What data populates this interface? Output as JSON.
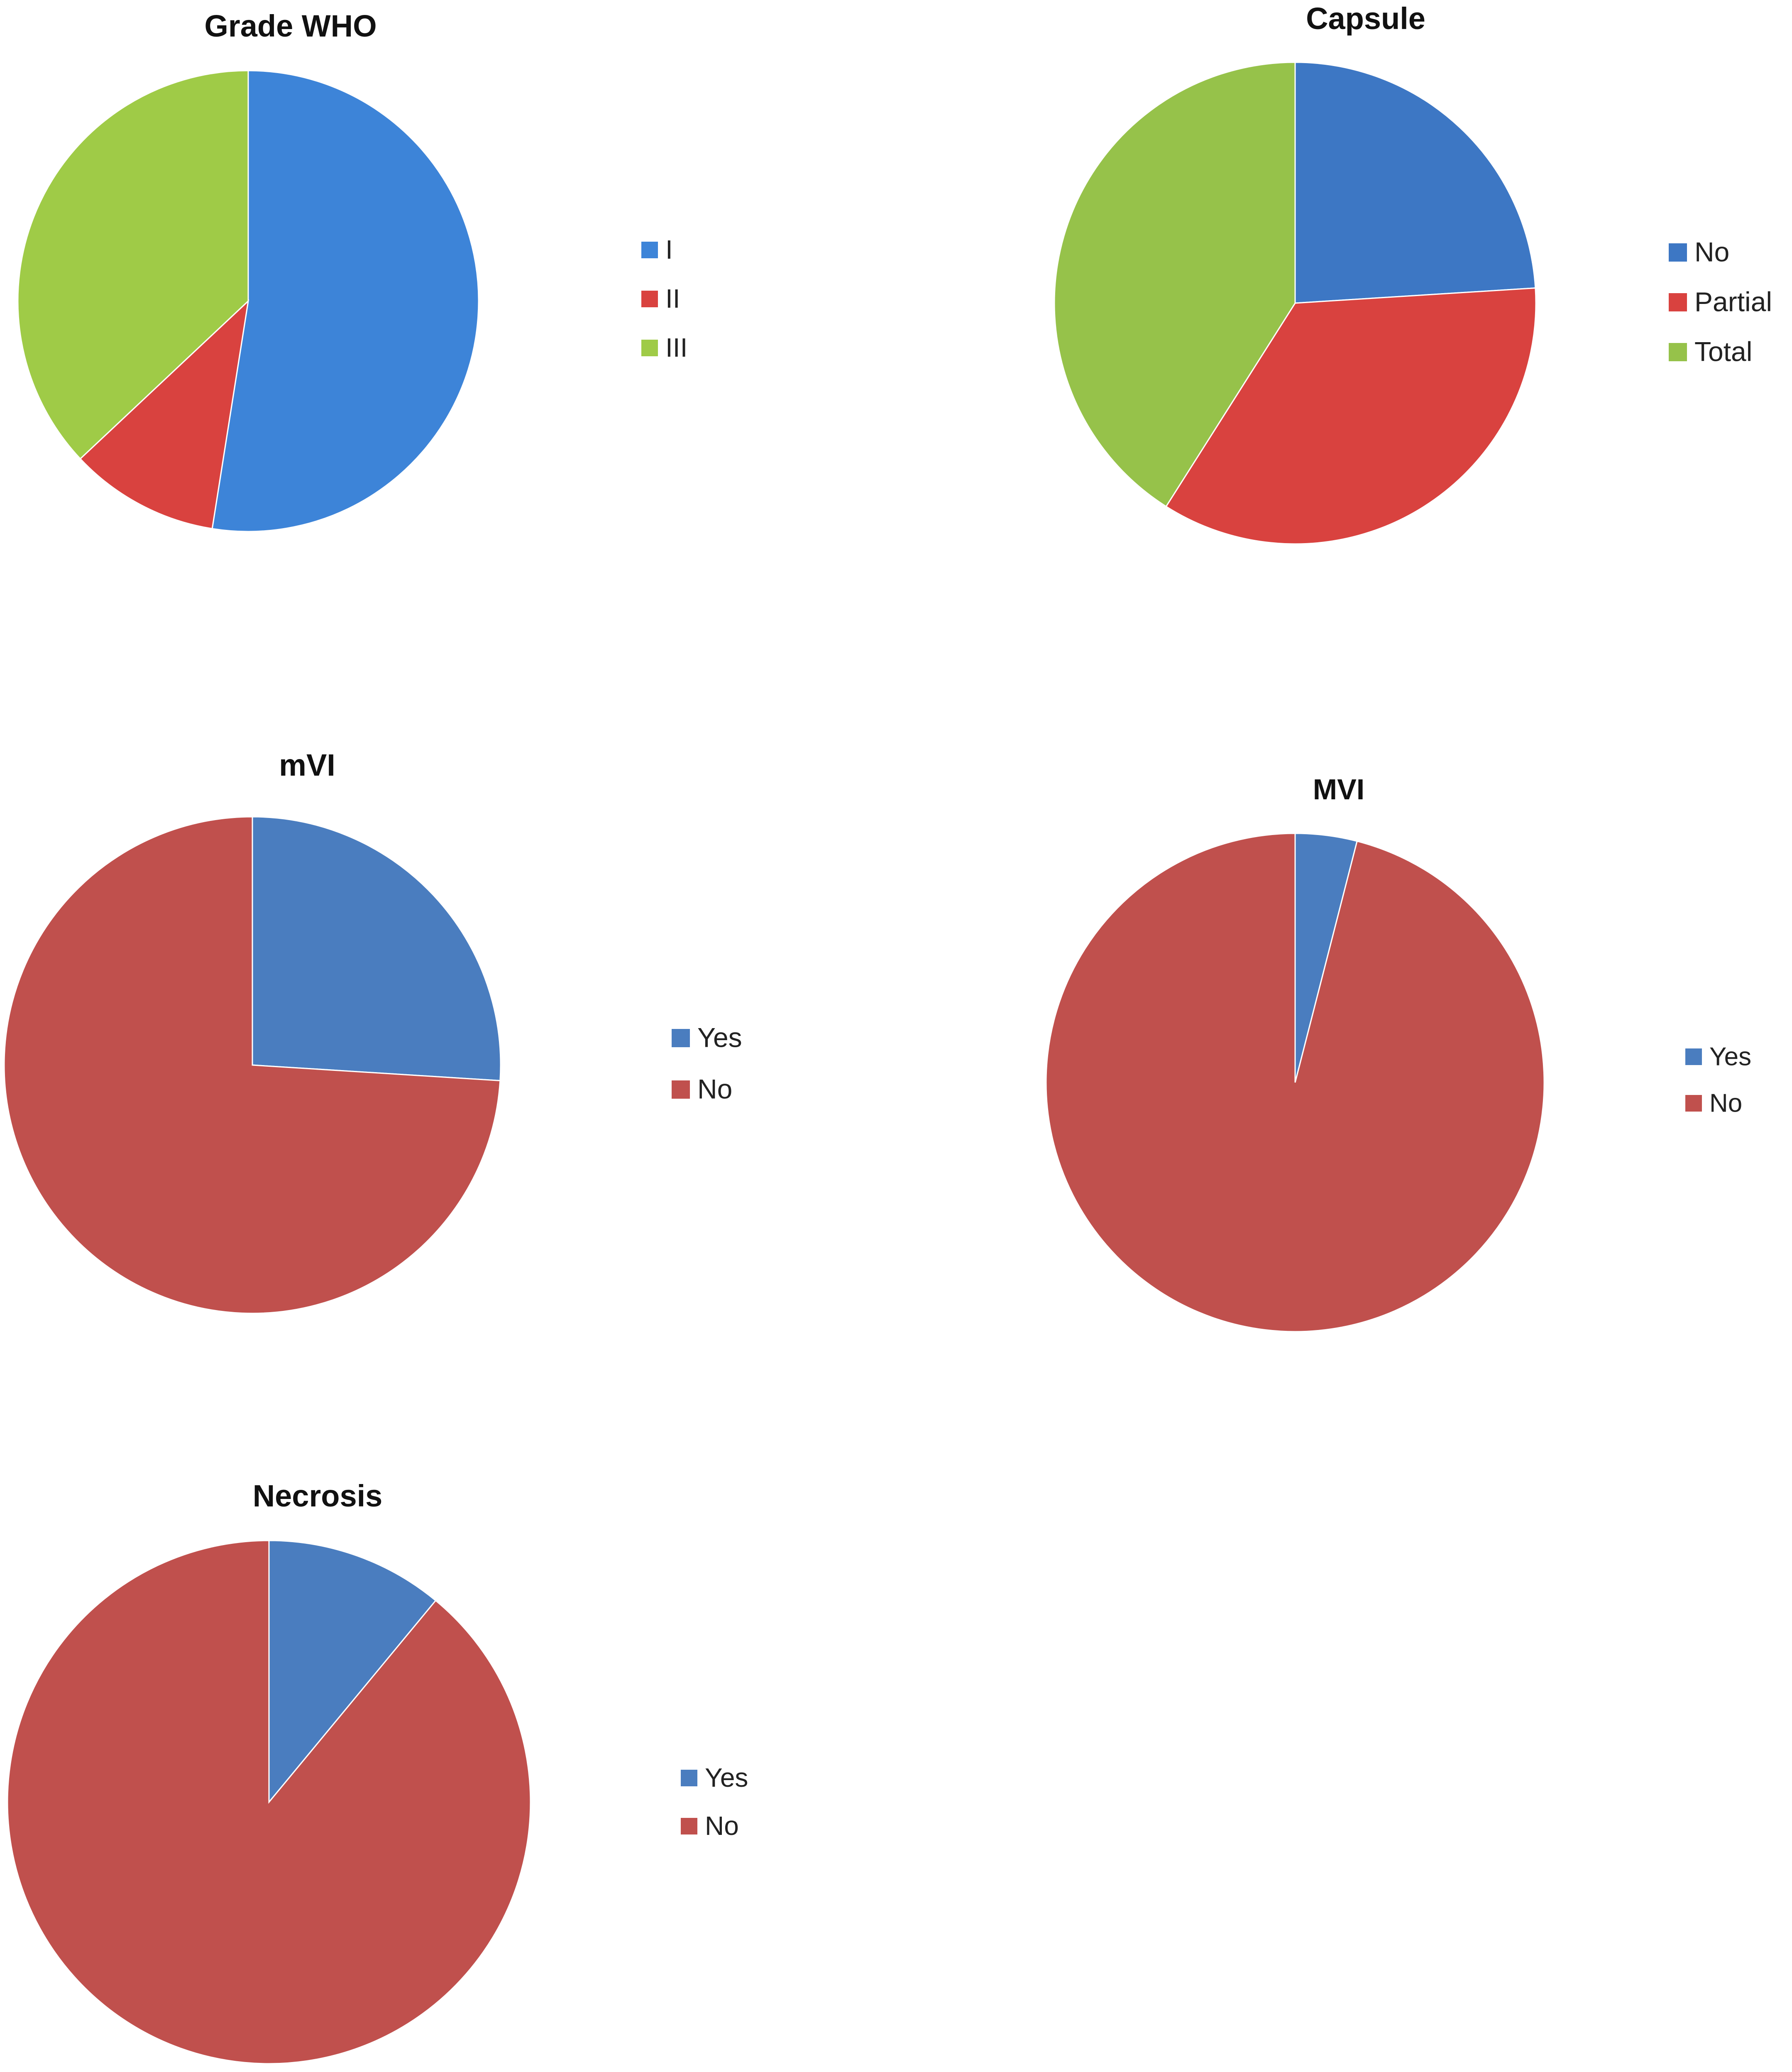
{
  "colors": {
    "blue": "#4a7dbf",
    "red": "#c0504d",
    "green": "#9bbb59",
    "bright_blue": "#3d84d8",
    "bright_red": "#d9423f",
    "bright_green": "#9fcb47"
  },
  "chart_data": [
    {
      "type": "pie",
      "title": "Grade WHO",
      "categories": [
        "I",
        "II",
        "III"
      ],
      "values": [
        52.5,
        10.5,
        37.0
      ],
      "colors": [
        "#3d84d8",
        "#d9423f",
        "#9fcb47"
      ],
      "legend": "right"
    },
    {
      "type": "pie",
      "title": "Capsule",
      "categories": [
        "No",
        "Partial",
        "Total"
      ],
      "values": [
        24,
        35,
        41
      ],
      "colors": [
        "#3d77c4",
        "#d9423f",
        "#96c24a"
      ],
      "legend": "right"
    },
    {
      "type": "pie",
      "title": "mVI",
      "categories": [
        "Yes",
        "No"
      ],
      "values": [
        26,
        74
      ],
      "colors": [
        "#4a7dbf",
        "#c0504d"
      ],
      "legend": "right"
    },
    {
      "type": "pie",
      "title": "MVI",
      "categories": [
        "Yes",
        "No"
      ],
      "values": [
        4,
        96
      ],
      "colors": [
        "#4a7dbf",
        "#c0504d"
      ],
      "legend": "right"
    },
    {
      "type": "pie",
      "title": "Necrosis",
      "categories": [
        "Yes",
        "No"
      ],
      "values": [
        11,
        89
      ],
      "colors": [
        "#4a7dbf",
        "#c0504d"
      ],
      "legend": "right"
    }
  ]
}
